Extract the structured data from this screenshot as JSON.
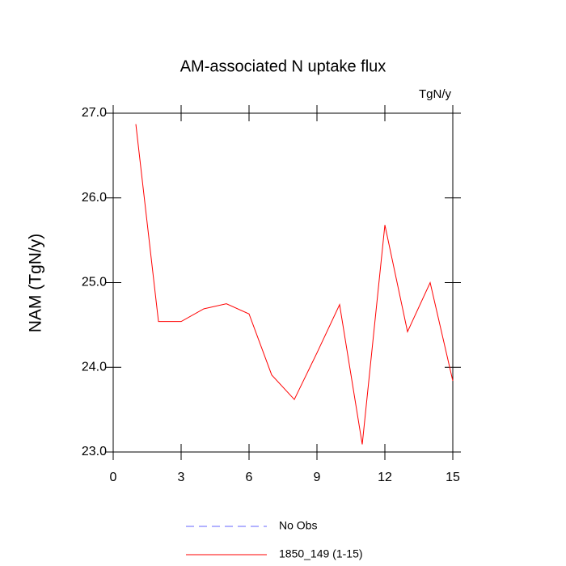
{
  "chart_data": {
    "type": "line",
    "title": "AM-associated N uptake flux",
    "units": "TgN/y",
    "y_label": "NAM  (TgN/y)",
    "x": [
      1,
      2,
      3,
      4,
      5,
      6,
      7,
      8,
      9,
      10,
      11,
      12,
      13,
      14,
      15
    ],
    "series": [
      {
        "name": "No Obs",
        "color": "#6666ff",
        "dashed": true,
        "values": [
          null,
          null,
          null,
          null,
          null,
          null,
          null,
          null,
          null,
          null,
          null,
          null,
          null,
          null,
          null
        ]
      },
      {
        "name": "1850_149 (1-15)",
        "color": "#ff0000",
        "dashed": false,
        "values": [
          26.87,
          24.54,
          24.54,
          24.69,
          24.75,
          24.63,
          23.91,
          23.62,
          24.17,
          24.74,
          23.09,
          25.68,
          24.42,
          25.0,
          23.84
        ]
      }
    ],
    "xlim": [
      0,
      15
    ],
    "xticks": [
      0,
      3,
      6,
      9,
      12,
      15
    ],
    "ylim": [
      23,
      27
    ],
    "yticks": [
      {
        "value": 23,
        "label": "23.0"
      },
      {
        "value": 24,
        "label": "24.0"
      },
      {
        "value": 25,
        "label": "25.0"
      },
      {
        "value": 26,
        "label": "26.0"
      },
      {
        "value": 27,
        "label": "27.0"
      }
    ],
    "grid": false
  }
}
